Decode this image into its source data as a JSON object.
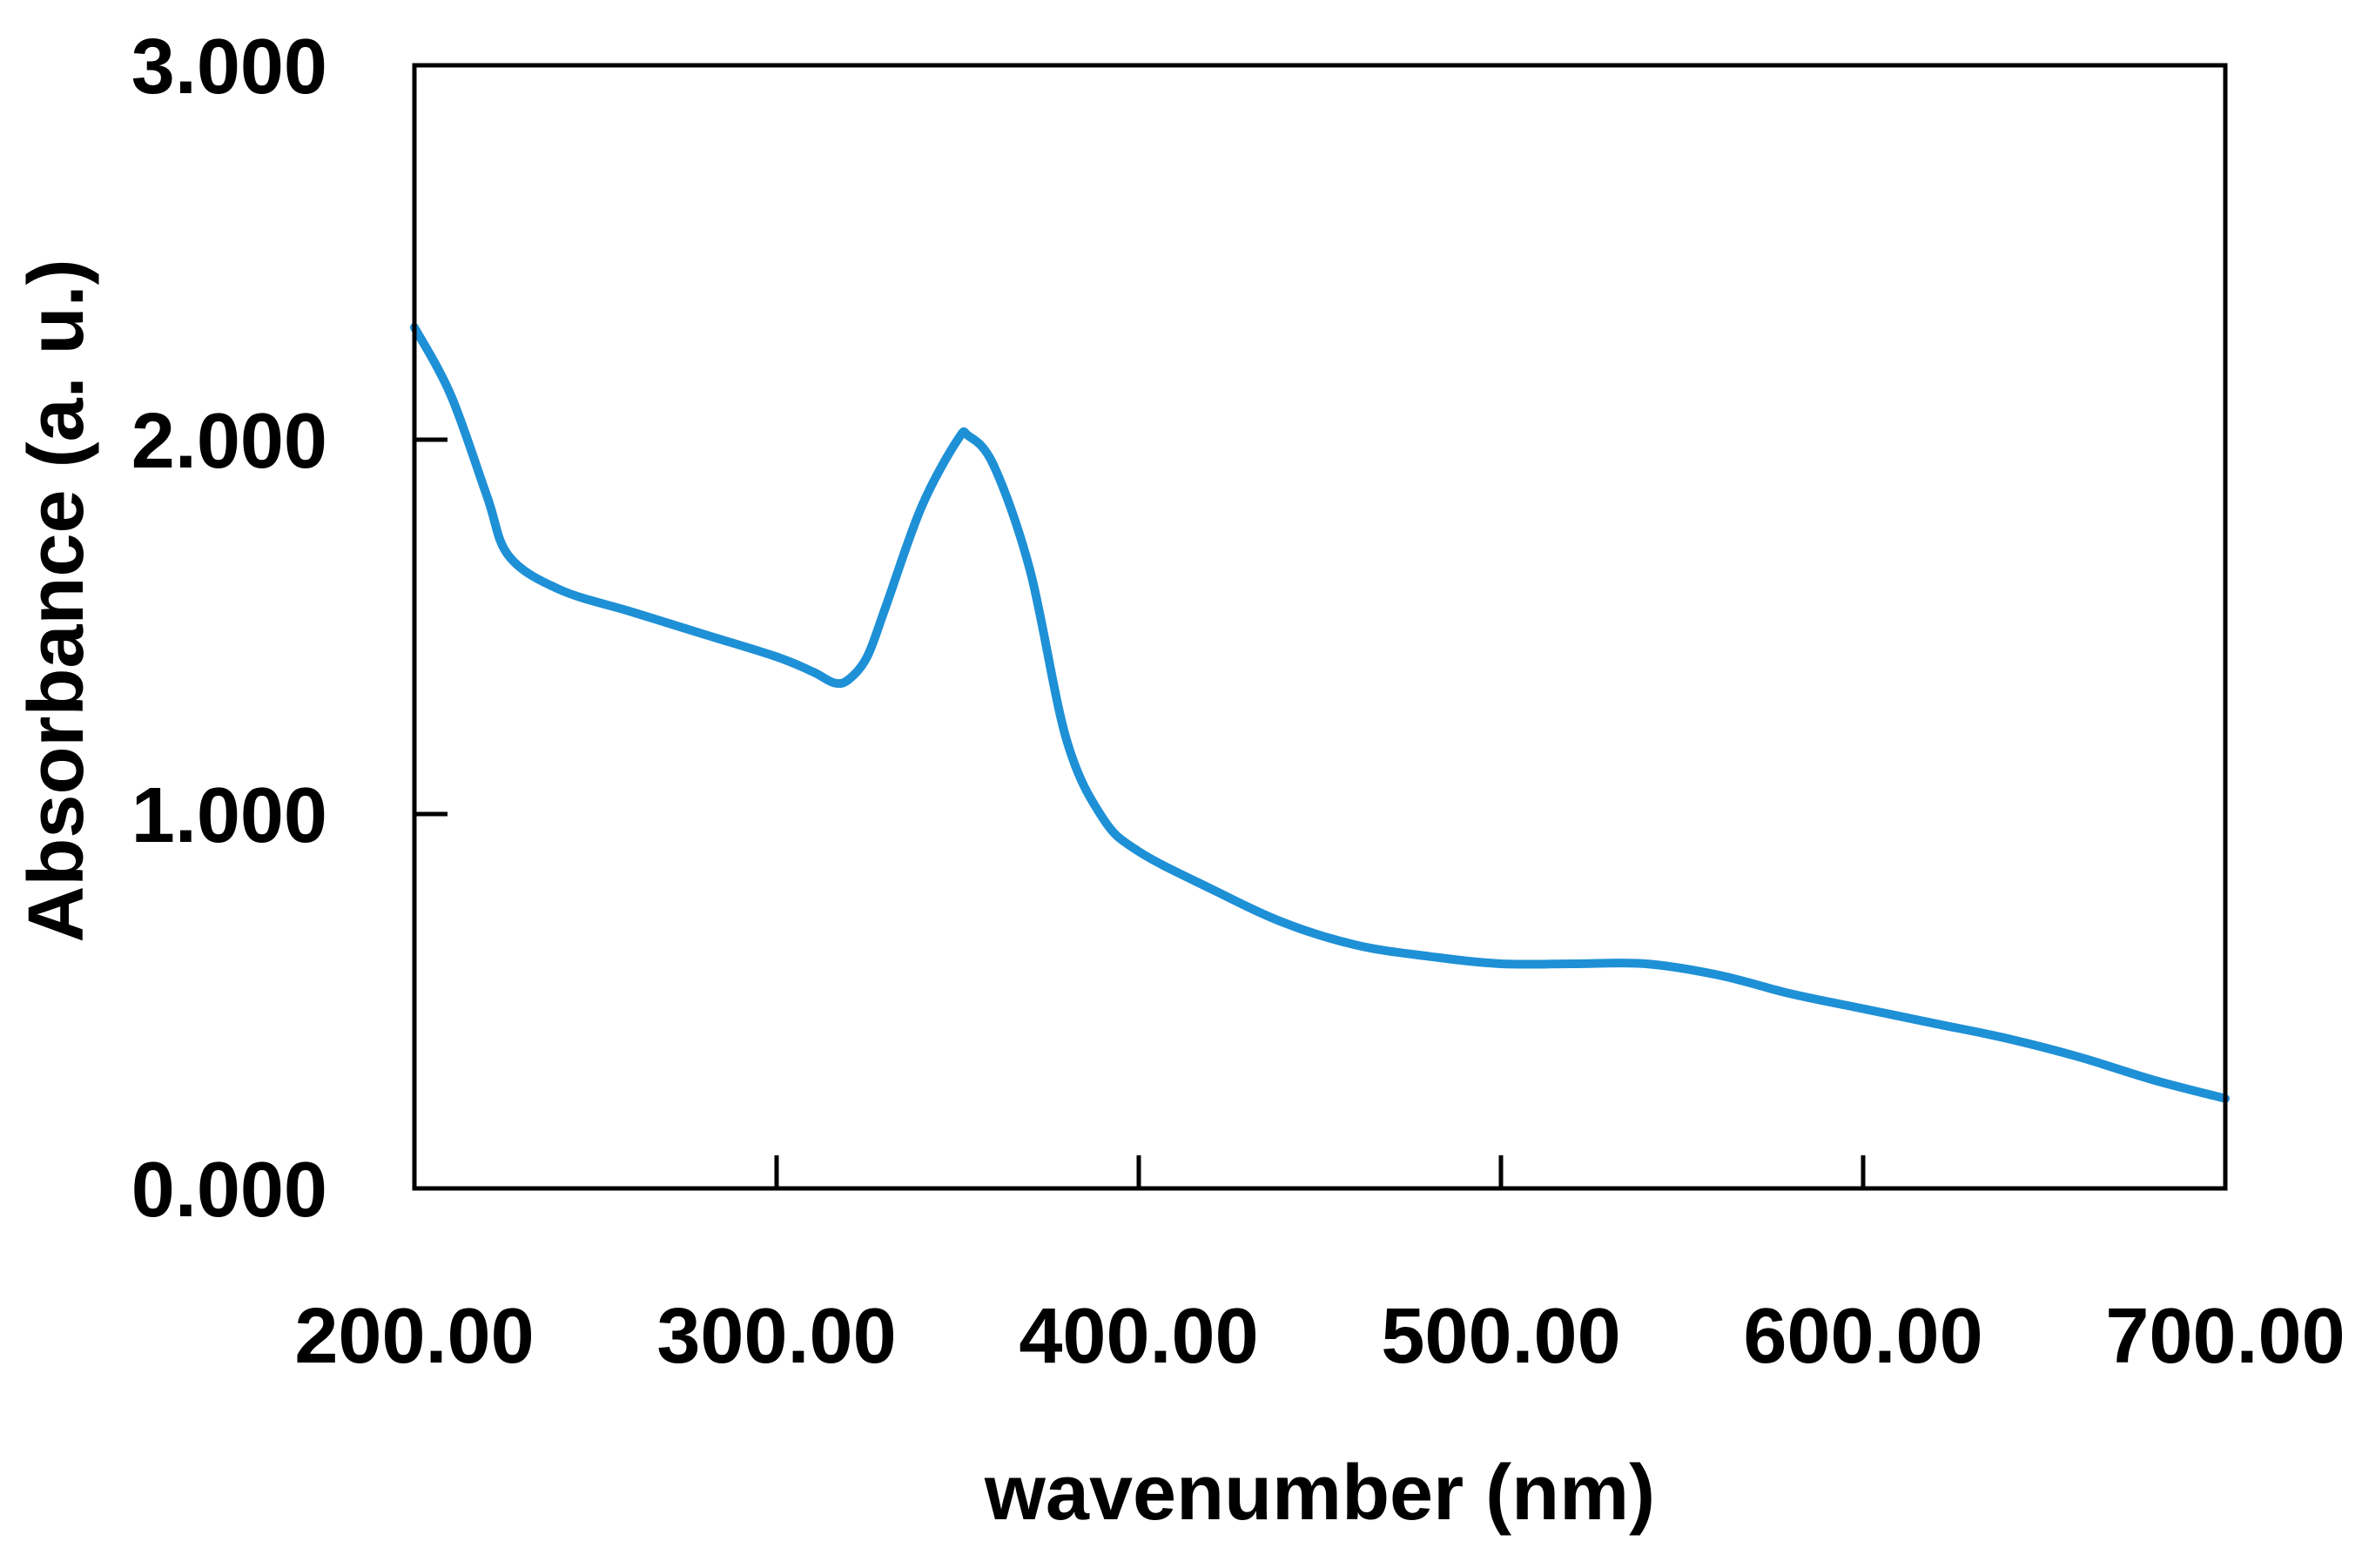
{
  "chart_data": {
    "type": "line",
    "title": "",
    "xlabel": "wavenumber (nm)",
    "ylabel": "Absorbance (a. u.)",
    "xlim": [
      200,
      700
    ],
    "ylim": [
      0,
      3
    ],
    "x_ticks": [
      200,
      300,
      400,
      500,
      600,
      700
    ],
    "x_tick_labels": [
      "200.00",
      "300.00",
      "400.00",
      "500.00",
      "600.00",
      "700.00"
    ],
    "y_ticks": [
      0,
      1,
      2,
      3
    ],
    "y_tick_labels": [
      "0.000",
      "1.000",
      "2.000",
      "3.000"
    ],
    "grid": false,
    "legend": "none",
    "series": [
      {
        "color": "#1e90d6",
        "x": [
          200,
          210,
          220,
          226,
          240,
          260,
          280,
          300,
          310,
          316,
          320,
          325,
          330,
          340,
          350,
          353,
          360,
          370,
          380,
          390,
          400,
          420,
          440,
          460,
          480,
          500,
          520,
          540,
          560,
          580,
          600,
          620,
          640,
          660,
          680,
          700
        ],
        "y": [
          2.3,
          2.12,
          1.85,
          1.69,
          1.6,
          1.54,
          1.48,
          1.42,
          1.38,
          1.35,
          1.36,
          1.42,
          1.55,
          1.82,
          2.0,
          2.01,
          1.93,
          1.65,
          1.2,
          0.99,
          0.9,
          0.8,
          0.71,
          0.65,
          0.62,
          0.6,
          0.6,
          0.6,
          0.57,
          0.52,
          0.48,
          0.44,
          0.4,
          0.35,
          0.29,
          0.24
        ]
      }
    ]
  }
}
